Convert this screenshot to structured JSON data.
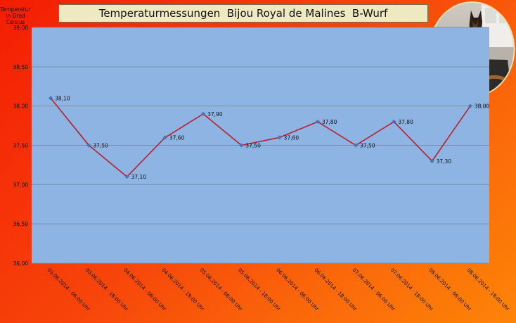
{
  "header": {
    "title": "Temperaturmessungen  Bijou Royal de Malines  B-Wurf",
    "photo_icon": "dog-photo-icon"
  },
  "chart_data": {
    "type": "line",
    "title": "Temperaturmessungen  Bijou Royal de Malines  B-Wurf",
    "ylabel": "Temperatur in Grad Celsius",
    "xlabel": "",
    "categories": [
      "03.06.2014 - 06:00 Uhr",
      "03.06.2014 - 18:00 Uhr",
      "04.06.2014 - 06:00 Uhr",
      "04.06.2014 - 18:00 Uhr",
      "05.06.2014 - 06:00 Uhr",
      "05.06.2014 - 18:00 Uhr",
      "06.06.2014 - 06:00 Uhr",
      "06.06.2014 - 18:00 Uhr",
      "07.06.2014 - 06:00 Uhr",
      "07.06.2014 - 18:00 Uhr",
      "08.06.2014 - 06:00 Uhr",
      "08.06.2014 - 18:00 Uhr"
    ],
    "values": [
      38.1,
      37.5,
      37.1,
      37.6,
      37.9,
      37.5,
      37.6,
      37.8,
      37.5,
      37.8,
      37.3,
      38.0
    ],
    "data_labels": [
      "38,10",
      "37,50",
      "37,10",
      "37,60",
      "37,90",
      "37,50",
      "37,60",
      "37,80",
      "37,50",
      "37,80",
      "37,30",
      "38,00"
    ],
    "ylim": [
      36.0,
      39.0
    ],
    "y_ticks": [
      36.0,
      36.5,
      37.0,
      37.5,
      38.0,
      38.5,
      39.0
    ],
    "y_tick_labels": [
      "36,00",
      "36,50",
      "37,00",
      "37,50",
      "38,00",
      "38,50",
      "39,00"
    ],
    "grid": true,
    "legend": "none",
    "colors": {
      "line": "#b8202a",
      "marker": "#4a74b2",
      "plot_area": "#8db4e3",
      "gridline": "#7d8ea6"
    }
  }
}
